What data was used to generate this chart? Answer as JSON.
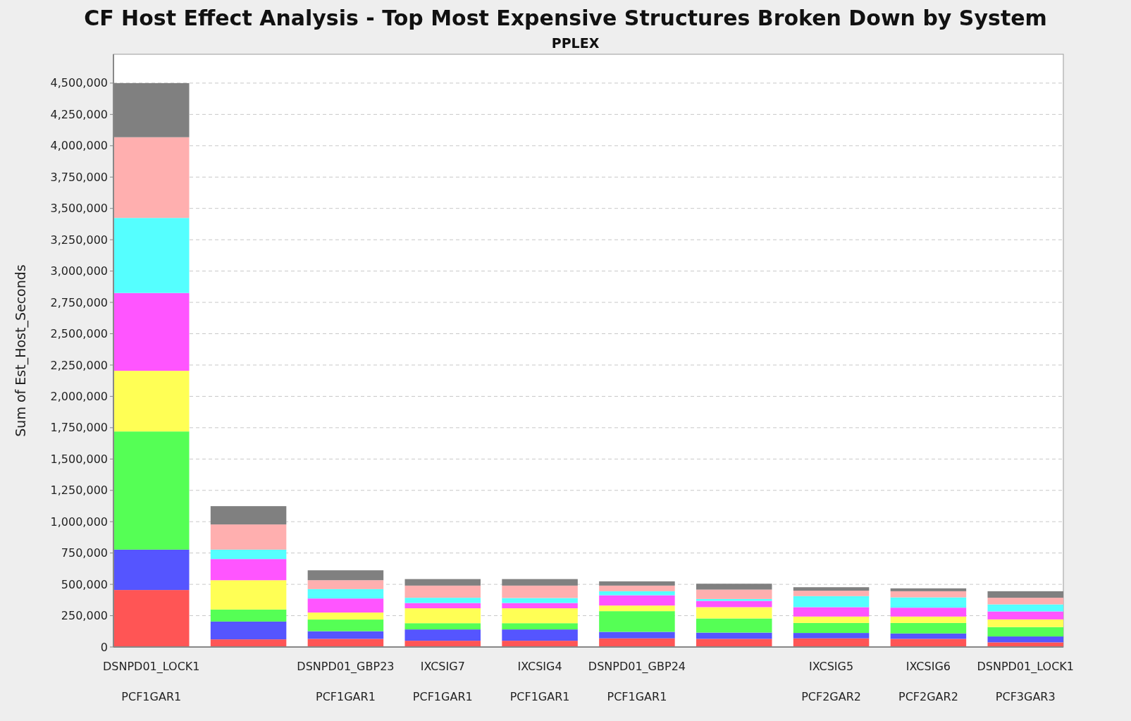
{
  "chart_data": {
    "type": "bar",
    "title": "CF Host Effect Analysis - Top Most Expensive Structures Broken Down by System",
    "subtitle": "PPLEX",
    "ylabel": "Sum of Est_Host_Seconds",
    "categories": [
      "DSNPD01_LOCK1\nPCF1GAR1",
      null,
      "DSNPD01_GBP23\nPCF1GAR1",
      "IXCSIG7\nPCF1GAR1",
      "IXCSIG4\nPCF1GAR1",
      "DSNPD01_GBP24\nPCF1GAR1",
      null,
      "IXCSIG5\nPCF2GAR2",
      "IXCSIG6\nPCF2GAR2",
      "DSNPD01_LOCK1\nPCF3GAR3"
    ],
    "stacked": true,
    "series": [
      {
        "color": "#ff5555",
        "values": [
          455000,
          61000,
          65000,
          50000,
          50000,
          69000,
          65000,
          69000,
          65000,
          37000
        ]
      },
      {
        "color": "#5555ff",
        "values": [
          322000,
          142000,
          61000,
          90000,
          90000,
          52000,
          50000,
          43000,
          43000,
          47000
        ]
      },
      {
        "color": "#55ff55",
        "values": [
          943000,
          96000,
          93000,
          50000,
          50000,
          165000,
          113000,
          80000,
          84000,
          75000
        ]
      },
      {
        "color": "#ffff55",
        "values": [
          484000,
          234000,
          56000,
          119000,
          119000,
          45000,
          90000,
          51000,
          51000,
          61000
        ]
      },
      {
        "color": "#ff55ff",
        "values": [
          621000,
          169000,
          112000,
          42000,
          42000,
          82000,
          50000,
          75000,
          71000,
          64000
        ]
      },
      {
        "color": "#55ffff",
        "values": [
          599000,
          75000,
          75000,
          42000,
          40000,
          32000,
          15000,
          88000,
          82000,
          56000
        ]
      },
      {
        "color": "#ffafaf",
        "values": [
          644000,
          201000,
          71000,
          97000,
          99000,
          45000,
          75000,
          43000,
          49000,
          53000
        ]
      },
      {
        "color": "#808080",
        "values": [
          432000,
          146000,
          79000,
          52000,
          52000,
          34000,
          47000,
          28000,
          23000,
          52000
        ]
      }
    ],
    "ylim": [
      0,
      4730000
    ],
    "yticks": [
      {
        "value": 0,
        "label": "0"
      },
      {
        "value": 250000,
        "label": "250,000"
      },
      {
        "value": 500000,
        "label": "500,000"
      },
      {
        "value": 750000,
        "label": "750,000"
      },
      {
        "value": 1000000,
        "label": "1,000,000"
      },
      {
        "value": 1250000,
        "label": "1,250,000"
      },
      {
        "value": 1500000,
        "label": "1,500,000"
      },
      {
        "value": 1750000,
        "label": "1,750,000"
      },
      {
        "value": 2000000,
        "label": "2,000,000"
      },
      {
        "value": 2250000,
        "label": "2,250,000"
      },
      {
        "value": 2500000,
        "label": "2,500,000"
      },
      {
        "value": 2750000,
        "label": "2,750,000"
      },
      {
        "value": 3000000,
        "label": "3,000,000"
      },
      {
        "value": 3250000,
        "label": "3,250,000"
      },
      {
        "value": 3500000,
        "label": "3,500,000"
      },
      {
        "value": 3750000,
        "label": "3,750,000"
      },
      {
        "value": 4000000,
        "label": "4,000,000"
      },
      {
        "value": 4250000,
        "label": "4,250,000"
      },
      {
        "value": 4500000,
        "label": "4,500,000"
      }
    ],
    "grid": "y"
  }
}
